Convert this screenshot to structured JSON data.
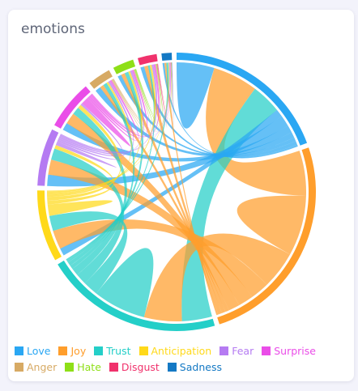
{
  "card": {
    "title": "emotions"
  },
  "chart_data": {
    "type": "chord",
    "title": "emotions",
    "groups": [
      "Love",
      "Joy",
      "Trust",
      "Anticipation",
      "Fear",
      "Surprise",
      "Anger",
      "Hate",
      "Disgust",
      "Sadness"
    ],
    "colors": [
      "#2aa7f3",
      "#ff9e2c",
      "#24cfc8",
      "#ffd91a",
      "#b57bf2",
      "#ea4de8",
      "#d7aa64",
      "#8edf17",
      "#f0326c",
      "#1479c4"
    ],
    "matrix": [
      [
        10,
        12,
        8,
        2,
        3,
        2,
        1.5,
        1,
        1,
        0.5
      ],
      [
        12,
        16,
        10,
        5,
        4,
        3,
        1,
        1,
        1,
        0.5
      ],
      [
        8,
        10,
        14,
        4,
        3,
        2,
        1,
        1,
        0.5,
        0.5
      ],
      [
        2,
        5,
        4,
        3,
        1,
        1,
        0.5,
        0.5,
        0.5,
        0.2
      ],
      [
        3,
        4,
        3,
        1,
        1,
        0.5,
        0.5,
        0.5,
        0.5,
        0.2
      ],
      [
        2,
        3,
        2,
        1,
        0.5,
        2,
        0.5,
        0.5,
        0.5,
        0.2
      ],
      [
        1.5,
        1,
        1,
        0.5,
        0.5,
        0.5,
        0.2,
        0.2,
        0.2,
        0.1
      ],
      [
        1,
        1,
        1,
        0.5,
        0.5,
        0.5,
        0.2,
        0.2,
        0.2,
        0.1
      ],
      [
        1,
        1,
        0.5,
        0.5,
        0.5,
        0.5,
        0.2,
        0.2,
        0.2,
        0.1
      ],
      [
        0.5,
        0.5,
        0.5,
        0.2,
        0.2,
        0.2,
        0.1,
        0.1,
        0.1,
        0.1
      ]
    ],
    "legend_position": "bottom"
  }
}
